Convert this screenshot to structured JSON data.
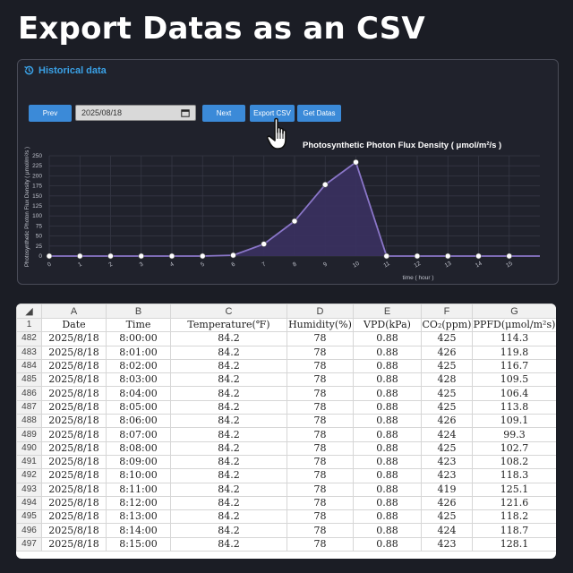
{
  "page_title": "Export Datas as an CSV",
  "panel": {
    "title": "Historical data",
    "prev_label": "Prev",
    "date_value": "2025/08/18",
    "next_label": "Next",
    "export_label": "Export CSV",
    "get_label": "Get Datas"
  },
  "chart_data": {
    "type": "area",
    "title": "Photosynthetic Photon Flux Density ( μmol/m²/s )",
    "xlabel": "time ( hour )",
    "ylabel": "Photosynthetic Photon Flux Density ( μmol/m²/s )",
    "x": [
      0,
      1,
      2,
      3,
      4,
      5,
      6,
      7,
      8,
      9,
      10,
      11,
      12,
      13,
      14,
      15,
      16
    ],
    "values": [
      0,
      0,
      0,
      0,
      0,
      0,
      2,
      30,
      87,
      178,
      234,
      0,
      0,
      0,
      0,
      0,
      0
    ],
    "xlim": [
      0,
      16
    ],
    "ylim": [
      0,
      250
    ],
    "yticks": [
      0,
      25,
      50,
      75,
      100,
      125,
      150,
      175,
      200,
      225,
      250
    ],
    "xticks": [
      0,
      1,
      2,
      3,
      4,
      5,
      6,
      7,
      8,
      9,
      10,
      11,
      12,
      13,
      14,
      15
    ],
    "grid": true,
    "colors": {
      "line": "#8a76c8",
      "fill": "#3a3160",
      "grid": "#353744"
    }
  },
  "sheet": {
    "column_letters": [
      "A",
      "B",
      "C",
      "D",
      "E",
      "F",
      "G"
    ],
    "header_row_number": "1",
    "headers": [
      "Date",
      "Time",
      "Temperature(℉)",
      "Humidity(%)",
      "VPD(kPa)",
      "CO₂(ppm)",
      "PPFD(μmol/m²s)"
    ],
    "rows": [
      {
        "n": "482",
        "c": [
          "2025/8/18",
          "8:00:00",
          "84.2",
          "78",
          "0.88",
          "425",
          "114.3"
        ]
      },
      {
        "n": "483",
        "c": [
          "2025/8/18",
          "8:01:00",
          "84.2",
          "78",
          "0.88",
          "426",
          "119.8"
        ]
      },
      {
        "n": "484",
        "c": [
          "2025/8/18",
          "8:02:00",
          "84.2",
          "78",
          "0.88",
          "425",
          "116.7"
        ]
      },
      {
        "n": "485",
        "c": [
          "2025/8/18",
          "8:03:00",
          "84.2",
          "78",
          "0.88",
          "428",
          "109.5"
        ]
      },
      {
        "n": "486",
        "c": [
          "2025/8/18",
          "8:04:00",
          "84.2",
          "78",
          "0.88",
          "425",
          "106.4"
        ]
      },
      {
        "n": "487",
        "c": [
          "2025/8/18",
          "8:05:00",
          "84.2",
          "78",
          "0.88",
          "425",
          "113.8"
        ]
      },
      {
        "n": "488",
        "c": [
          "2025/8/18",
          "8:06:00",
          "84.2",
          "78",
          "0.88",
          "426",
          "109.1"
        ]
      },
      {
        "n": "489",
        "c": [
          "2025/8/18",
          "8:07:00",
          "84.2",
          "78",
          "0.88",
          "424",
          "99.3"
        ]
      },
      {
        "n": "490",
        "c": [
          "2025/8/18",
          "8:08:00",
          "84.2",
          "78",
          "0.88",
          "425",
          "102.7"
        ]
      },
      {
        "n": "491",
        "c": [
          "2025/8/18",
          "8:09:00",
          "84.2",
          "78",
          "0.88",
          "423",
          "108.2"
        ]
      },
      {
        "n": "492",
        "c": [
          "2025/8/18",
          "8:10:00",
          "84.2",
          "78",
          "0.88",
          "423",
          "118.3"
        ]
      },
      {
        "n": "493",
        "c": [
          "2025/8/18",
          "8:11:00",
          "84.2",
          "78",
          "0.88",
          "419",
          "125.1"
        ]
      },
      {
        "n": "494",
        "c": [
          "2025/8/18",
          "8:12:00",
          "84.2",
          "78",
          "0.88",
          "426",
          "121.6"
        ]
      },
      {
        "n": "495",
        "c": [
          "2025/8/18",
          "8:13:00",
          "84.2",
          "78",
          "0.88",
          "425",
          "118.2"
        ]
      },
      {
        "n": "496",
        "c": [
          "2025/8/18",
          "8:14:00",
          "84.2",
          "78",
          "0.88",
          "424",
          "118.7"
        ]
      },
      {
        "n": "497",
        "c": [
          "2025/8/18",
          "8:15:00",
          "84.2",
          "78",
          "0.88",
          "423",
          "128.1"
        ]
      }
    ]
  },
  "icons": {
    "history": "history-clock-icon",
    "calendar": "calendar-icon",
    "cursor": "hand-pointer-icon",
    "corner": "select-all-triangle-icon"
  }
}
